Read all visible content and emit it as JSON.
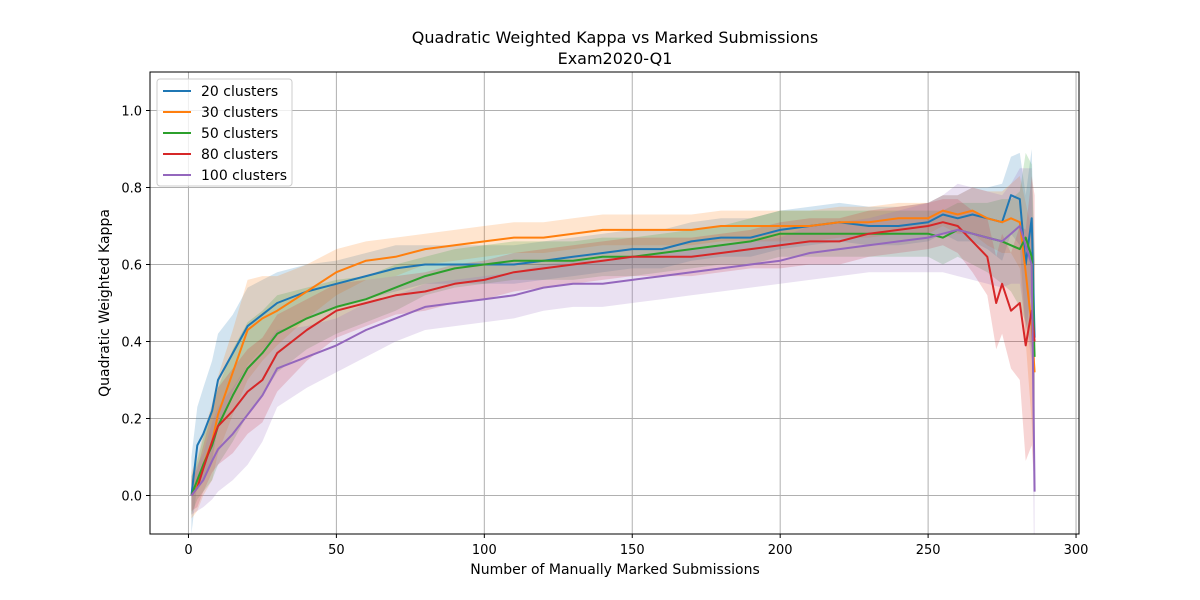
{
  "chart_data": {
    "type": "line",
    "title": "Quadratic Weighted Kappa vs Marked Submissions",
    "subtitle": "Exam2020-Q1",
    "xlabel": "Number of Manually Marked Submissions",
    "ylabel": "Quadratic Weighted Kappa",
    "xlim": [
      -13,
      301
    ],
    "ylim": [
      -0.1,
      1.1
    ],
    "xticks": [
      0,
      50,
      100,
      150,
      200,
      250,
      300
    ],
    "xtick_labels": [
      "0",
      "50",
      "100",
      "150",
      "200",
      "250",
      "300"
    ],
    "yticks": [
      0.0,
      0.2,
      0.4,
      0.6,
      0.8,
      1.0
    ],
    "ytick_labels": [
      "0.0",
      "0.2",
      "0.4",
      "0.6",
      "0.8",
      "1.0"
    ],
    "grid": true,
    "legend_position": "top-left",
    "series": [
      {
        "name": "20 clusters",
        "color": "#1f77b4",
        "x": [
          1,
          3,
          5,
          8,
          10,
          15,
          20,
          25,
          30,
          40,
          50,
          60,
          70,
          80,
          90,
          100,
          110,
          120,
          130,
          140,
          150,
          160,
          170,
          180,
          190,
          200,
          210,
          220,
          230,
          240,
          250,
          255,
          260,
          265,
          270,
          275,
          278,
          281,
          283,
          285,
          286
        ],
        "y": [
          0.0,
          0.13,
          0.16,
          0.22,
          0.3,
          0.37,
          0.44,
          0.47,
          0.5,
          0.53,
          0.55,
          0.57,
          0.59,
          0.6,
          0.6,
          0.6,
          0.6,
          0.61,
          0.62,
          0.63,
          0.64,
          0.64,
          0.66,
          0.67,
          0.67,
          0.69,
          0.7,
          0.71,
          0.7,
          0.7,
          0.71,
          0.73,
          0.72,
          0.73,
          0.72,
          0.71,
          0.78,
          0.77,
          0.6,
          0.72,
          0.41
        ],
        "band": [
          0.1,
          0.1,
          0.12,
          0.13,
          0.12,
          0.1,
          0.1,
          0.09,
          0.08,
          0.07,
          0.06,
          0.06,
          0.06,
          0.05,
          0.05,
          0.05,
          0.05,
          0.05,
          0.05,
          0.05,
          0.05,
          0.05,
          0.05,
          0.05,
          0.05,
          0.05,
          0.05,
          0.05,
          0.05,
          0.05,
          0.05,
          0.05,
          0.06,
          0.07,
          0.08,
          0.1,
          0.1,
          0.12,
          0.18,
          0.18,
          0.2
        ]
      },
      {
        "name": "30 clusters",
        "color": "#ff7f0e",
        "x": [
          1,
          3,
          5,
          8,
          10,
          15,
          20,
          25,
          30,
          40,
          50,
          60,
          70,
          80,
          90,
          100,
          110,
          120,
          130,
          140,
          150,
          160,
          170,
          180,
          190,
          200,
          210,
          220,
          230,
          240,
          250,
          255,
          260,
          265,
          270,
          275,
          278,
          281,
          283,
          285,
          286
        ],
        "y": [
          0.0,
          0.03,
          0.08,
          0.14,
          0.21,
          0.32,
          0.43,
          0.46,
          0.48,
          0.53,
          0.58,
          0.61,
          0.62,
          0.64,
          0.65,
          0.66,
          0.67,
          0.67,
          0.68,
          0.69,
          0.69,
          0.69,
          0.69,
          0.7,
          0.7,
          0.7,
          0.7,
          0.71,
          0.71,
          0.72,
          0.72,
          0.74,
          0.73,
          0.74,
          0.72,
          0.71,
          0.72,
          0.71,
          0.58,
          0.44,
          0.32
        ],
        "band": [
          0.06,
          0.07,
          0.08,
          0.1,
          0.1,
          0.11,
          0.13,
          0.11,
          0.09,
          0.07,
          0.06,
          0.05,
          0.05,
          0.04,
          0.04,
          0.04,
          0.04,
          0.04,
          0.04,
          0.04,
          0.04,
          0.04,
          0.04,
          0.04,
          0.04,
          0.04,
          0.04,
          0.04,
          0.04,
          0.04,
          0.04,
          0.04,
          0.05,
          0.06,
          0.07,
          0.08,
          0.09,
          0.12,
          0.18,
          0.25,
          0.28
        ]
      },
      {
        "name": "50 clusters",
        "color": "#2ca02c",
        "x": [
          1,
          3,
          5,
          8,
          10,
          15,
          20,
          25,
          30,
          40,
          50,
          60,
          70,
          80,
          90,
          100,
          110,
          120,
          130,
          140,
          150,
          160,
          170,
          180,
          190,
          200,
          210,
          220,
          230,
          240,
          250,
          255,
          260,
          265,
          270,
          275,
          278,
          281,
          283,
          285,
          286
        ],
        "y": [
          0.0,
          0.04,
          0.08,
          0.13,
          0.18,
          0.26,
          0.33,
          0.37,
          0.42,
          0.46,
          0.49,
          0.51,
          0.54,
          0.57,
          0.59,
          0.6,
          0.61,
          0.61,
          0.61,
          0.62,
          0.62,
          0.63,
          0.64,
          0.65,
          0.66,
          0.68,
          0.68,
          0.68,
          0.68,
          0.68,
          0.68,
          0.67,
          0.69,
          0.68,
          0.67,
          0.66,
          0.65,
          0.64,
          0.67,
          0.62,
          0.36
        ],
        "band": [
          0.05,
          0.05,
          0.07,
          0.09,
          0.1,
          0.12,
          0.12,
          0.11,
          0.1,
          0.08,
          0.07,
          0.06,
          0.06,
          0.05,
          0.05,
          0.05,
          0.05,
          0.05,
          0.05,
          0.05,
          0.05,
          0.05,
          0.05,
          0.05,
          0.06,
          0.06,
          0.06,
          0.06,
          0.06,
          0.06,
          0.06,
          0.07,
          0.07,
          0.08,
          0.09,
          0.11,
          0.12,
          0.15,
          0.22,
          0.24,
          0.25
        ]
      },
      {
        "name": "80 clusters",
        "color": "#d62728",
        "x": [
          1,
          3,
          5,
          8,
          10,
          15,
          20,
          25,
          30,
          40,
          50,
          60,
          70,
          80,
          90,
          100,
          110,
          120,
          130,
          140,
          150,
          160,
          170,
          180,
          190,
          200,
          210,
          220,
          230,
          240,
          250,
          255,
          260,
          265,
          270,
          273,
          275,
          278,
          281,
          283,
          285,
          286
        ],
        "y": [
          0.0,
          0.02,
          0.07,
          0.14,
          0.18,
          0.22,
          0.27,
          0.3,
          0.37,
          0.43,
          0.48,
          0.5,
          0.52,
          0.53,
          0.55,
          0.56,
          0.58,
          0.59,
          0.6,
          0.61,
          0.62,
          0.62,
          0.62,
          0.63,
          0.64,
          0.65,
          0.66,
          0.66,
          0.68,
          0.69,
          0.7,
          0.71,
          0.7,
          0.66,
          0.62,
          0.5,
          0.55,
          0.48,
          0.5,
          0.39,
          0.48,
          0.4
        ],
        "band": [
          0.04,
          0.05,
          0.06,
          0.08,
          0.1,
          0.11,
          0.11,
          0.11,
          0.1,
          0.08,
          0.07,
          0.06,
          0.05,
          0.05,
          0.05,
          0.05,
          0.05,
          0.05,
          0.05,
          0.05,
          0.05,
          0.05,
          0.05,
          0.05,
          0.05,
          0.06,
          0.06,
          0.06,
          0.06,
          0.06,
          0.06,
          0.06,
          0.07,
          0.08,
          0.1,
          0.12,
          0.13,
          0.15,
          0.2,
          0.3,
          0.35,
          0.38
        ]
      },
      {
        "name": "100 clusters",
        "color": "#9467bd",
        "x": [
          1,
          3,
          5,
          8,
          10,
          15,
          20,
          25,
          30,
          40,
          50,
          60,
          70,
          80,
          90,
          100,
          110,
          120,
          130,
          140,
          150,
          160,
          170,
          180,
          190,
          200,
          210,
          220,
          230,
          240,
          250,
          255,
          260,
          265,
          270,
          275,
          278,
          281,
          283,
          285,
          286
        ],
        "y": [
          0.0,
          0.02,
          0.04,
          0.09,
          0.12,
          0.16,
          0.21,
          0.26,
          0.33,
          0.36,
          0.39,
          0.43,
          0.46,
          0.49,
          0.5,
          0.51,
          0.52,
          0.54,
          0.55,
          0.55,
          0.56,
          0.57,
          0.58,
          0.59,
          0.6,
          0.61,
          0.63,
          0.64,
          0.65,
          0.66,
          0.67,
          0.68,
          0.69,
          0.68,
          0.67,
          0.66,
          0.68,
          0.7,
          0.65,
          0.6,
          0.01
        ],
        "band": [
          0.05,
          0.06,
          0.07,
          0.1,
          0.11,
          0.12,
          0.13,
          0.12,
          0.1,
          0.08,
          0.07,
          0.07,
          0.06,
          0.06,
          0.06,
          0.06,
          0.06,
          0.06,
          0.06,
          0.06,
          0.06,
          0.06,
          0.06,
          0.06,
          0.06,
          0.06,
          0.07,
          0.07,
          0.07,
          0.08,
          0.09,
          0.1,
          0.12,
          0.12,
          0.12,
          0.12,
          0.13,
          0.15,
          0.2,
          0.25,
          0.3
        ]
      }
    ]
  }
}
